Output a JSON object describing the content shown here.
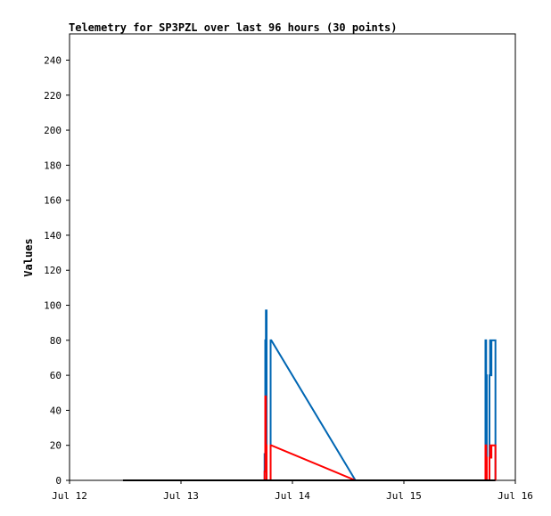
{
  "chart_data": {
    "type": "line",
    "title": "Telemetry for SP3PZL over last 96 hours (30 points)",
    "ylabel": "Values",
    "xlabel": "",
    "xlim": [
      "Jul 12 00:00",
      "Jul 16 00:00"
    ],
    "ylim": [
      0,
      255
    ],
    "grid": false,
    "x_ticks": [
      "Jul 12",
      "Jul 13",
      "Jul 14",
      "Jul 15",
      "Jul 16"
    ],
    "y_ticks": [
      "0",
      "20",
      "40",
      "60",
      "80",
      "100",
      "120",
      "140",
      "160",
      "180",
      "200",
      "220",
      "240"
    ],
    "series": [
      {
        "color": "#0066b3",
        "points": [
          [
            "Jul 12 11:31",
            0
          ],
          [
            "Jul 13 18:00",
            0
          ],
          [
            "Jul 13 18:00",
            15
          ],
          [
            "Jul 13 18:09",
            15
          ],
          [
            "Jul 13 18:09",
            80
          ],
          [
            "Jul 13 18:17",
            80
          ],
          [
            "Jul 13 18:17",
            97
          ],
          [
            "Jul 13 18:26",
            97
          ],
          [
            "Jul 13 18:26",
            0
          ],
          [
            "Jul 13 19:18",
            0
          ],
          [
            "Jul 13 19:18",
            80
          ],
          [
            "Jul 13 19:27",
            80
          ],
          [
            "Jul 14 13:34",
            0
          ],
          [
            "Jul 15 17:34",
            0
          ],
          [
            "Jul 15 17:34",
            80
          ],
          [
            "Jul 15 17:43",
            80
          ],
          [
            "Jul 15 17:43",
            60
          ],
          [
            "Jul 15 17:51",
            60
          ],
          [
            "Jul 15 17:51",
            0
          ],
          [
            "Jul 15 18:26",
            0
          ],
          [
            "Jul 15 18:26",
            60
          ],
          [
            "Jul 15 18:34",
            60
          ],
          [
            "Jul 15 18:34",
            80
          ],
          [
            "Jul 15 18:43",
            80
          ],
          [
            "Jul 15 18:43",
            60
          ],
          [
            "Jul 15 18:51",
            60
          ],
          [
            "Jul 15 18:51",
            80
          ],
          [
            "Jul 15 19:43",
            80
          ],
          [
            "Jul 15 19:43",
            0
          ]
        ]
      },
      {
        "color": "#ff0000",
        "points": [
          [
            "Jul 12 11:31",
            0
          ],
          [
            "Jul 13 18:00",
            0
          ],
          [
            "Jul 13 18:00",
            5
          ],
          [
            "Jul 13 18:09",
            5
          ],
          [
            "Jul 13 18:09",
            48
          ],
          [
            "Jul 13 18:17",
            48
          ],
          [
            "Jul 13 18:17",
            20
          ],
          [
            "Jul 13 18:26",
            20
          ],
          [
            "Jul 13 18:26",
            0
          ],
          [
            "Jul 13 19:18",
            0
          ],
          [
            "Jul 13 19:18",
            20
          ],
          [
            "Jul 13 19:27",
            20
          ],
          [
            "Jul 14 13:34",
            0
          ],
          [
            "Jul 15 17:34",
            0
          ],
          [
            "Jul 15 17:34",
            20
          ],
          [
            "Jul 15 17:43",
            20
          ],
          [
            "Jul 15 17:43",
            13
          ],
          [
            "Jul 15 17:51",
            13
          ],
          [
            "Jul 15 17:51",
            0
          ],
          [
            "Jul 15 18:26",
            0
          ],
          [
            "Jul 15 18:26",
            13
          ],
          [
            "Jul 15 18:34",
            13
          ],
          [
            "Jul 15 18:34",
            20
          ],
          [
            "Jul 15 18:43",
            20
          ],
          [
            "Jul 15 18:43",
            13
          ],
          [
            "Jul 15 18:51",
            13
          ],
          [
            "Jul 15 18:51",
            20
          ],
          [
            "Jul 15 19:43",
            20
          ],
          [
            "Jul 15 19:43",
            0
          ]
        ]
      },
      {
        "color": "#000000",
        "points": [
          [
            "Jul 12 11:31",
            0
          ],
          [
            "Jul 15 19:43",
            0
          ]
        ]
      }
    ]
  }
}
